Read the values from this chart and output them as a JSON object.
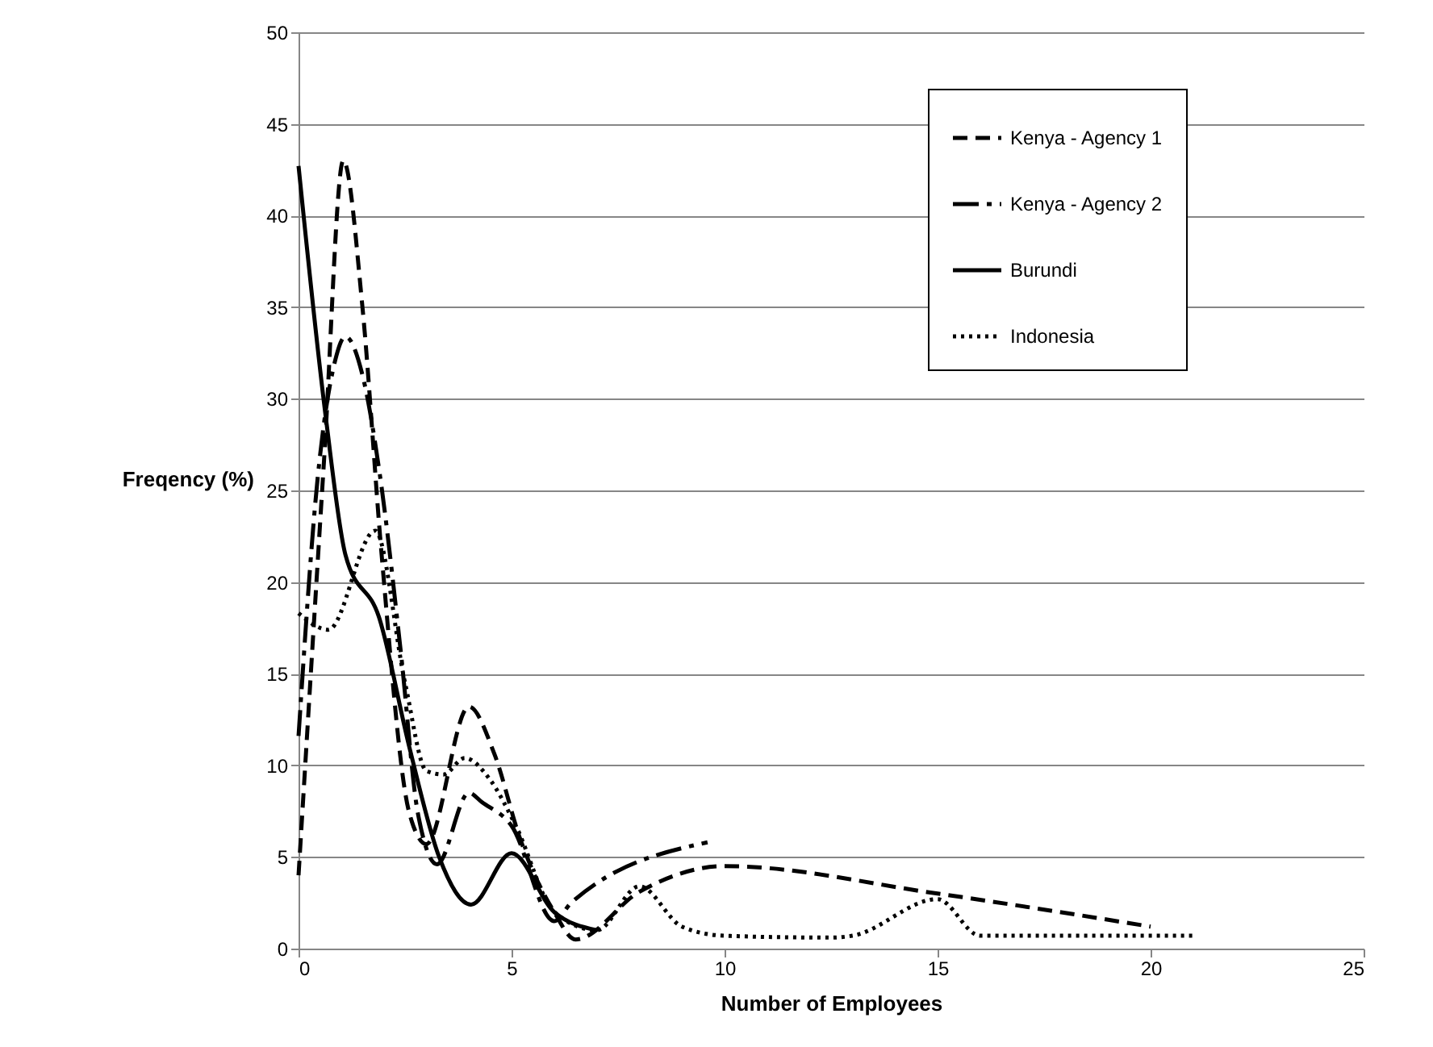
{
  "chart_data": {
    "type": "line",
    "xlabel": "Number of Employees",
    "ylabel": "Freqency (%)",
    "xlim": [
      0,
      25
    ],
    "xticks": [
      0,
      5,
      10,
      15,
      20,
      25
    ],
    "ylim": [
      0,
      50
    ],
    "yticks": [
      0,
      5,
      10,
      15,
      20,
      25,
      30,
      35,
      40,
      45,
      50
    ],
    "grid": "y",
    "legend": "top right",
    "marker": "none",
    "series": [
      {
        "name": "Kenya - Agency 1",
        "color": "#000000",
        "line_style": "dashed",
        "x": [
          0,
          0.6,
          1.05,
          1.5,
          1.95,
          2.6,
          3,
          4,
          4.6,
          5.2,
          6,
          6.5,
          8,
          10,
          15,
          20
        ],
        "values": [
          4,
          26.7,
          43,
          35,
          21.5,
          7.4,
          5.7,
          13.2,
          10.6,
          6,
          2,
          0.5,
          3.1,
          4.5,
          3,
          1.2
        ]
      },
      {
        "name": "Kenya - Agency 2",
        "color": "#000000",
        "line_style": "dashdot",
        "x": [
          0,
          0.45,
          0.85,
          1.1,
          1.5,
          1.9,
          2.4,
          2.8,
          3.25,
          4,
          4.3,
          5,
          6,
          6.4,
          9.6
        ],
        "values": [
          11.6,
          25.7,
          32,
          33.4,
          31.3,
          26,
          16.2,
          7.4,
          4.6,
          8.5,
          8,
          6.7,
          1.5,
          2.5,
          5.8
        ]
      },
      {
        "name": "Burundi",
        "color": "#000000",
        "line_style": "solid",
        "x": [
          0,
          0.65,
          1.1,
          1.9,
          2.6,
          3.3,
          4.05,
          5,
          6,
          7
        ],
        "values": [
          42.7,
          28.8,
          21.5,
          18,
          11,
          5,
          2.4,
          5.2,
          2,
          1
        ]
      },
      {
        "name": "Indonesia",
        "color": "#000000",
        "line_style": "dotted",
        "x": [
          0,
          0.7,
          1.8,
          2.5,
          3,
          3.4,
          3.9,
          4.5,
          5.1,
          6,
          7,
          8,
          9,
          10,
          12.5,
          13,
          15,
          16,
          21
        ],
        "values": [
          18.3,
          17.4,
          22.8,
          14.5,
          9.7,
          9.5,
          10.4,
          9.2,
          6.7,
          2,
          1,
          3.4,
          1.2,
          0.7,
          0.6,
          0.7,
          2.7,
          0.7,
          0.7
        ]
      }
    ]
  }
}
